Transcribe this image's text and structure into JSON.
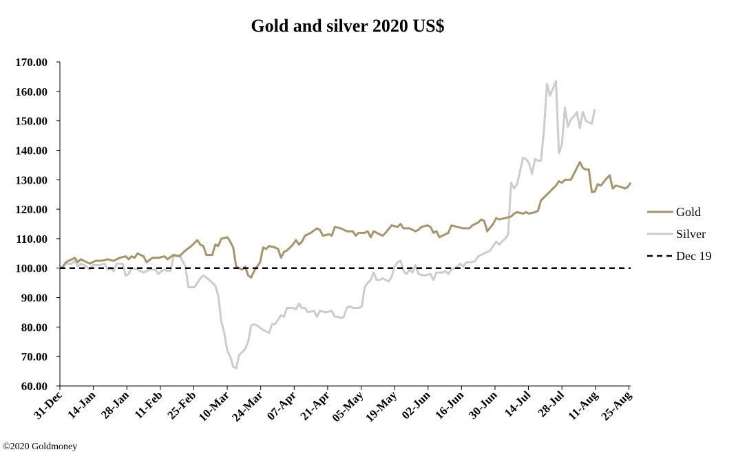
{
  "chart_data": {
    "type": "line",
    "title": "Gold and silver 2020  US$",
    "xlabel": "",
    "ylabel": "",
    "ylim": [
      60,
      170
    ],
    "yticks": [
      "60.00",
      "70.00",
      "80.00",
      "90.00",
      "100.00",
      "110.00",
      "120.00",
      "130.00",
      "140.00",
      "150.00",
      "160.00",
      "170.00"
    ],
    "xticks": [
      "31-Dec",
      "14-Jan",
      "28-Jan",
      "11-Feb",
      "25-Feb",
      "10-Mar",
      "24-Mar",
      "07-Apr",
      "21-Apr",
      "05-May",
      "19-May",
      "02-Jun",
      "16-Jun",
      "30-Jun",
      "14-Jul",
      "28-Jul",
      "11-Aug",
      "25-Aug"
    ],
    "legend_position": "right",
    "grid": false,
    "series": [
      {
        "name": "Gold",
        "color": "#a8946a",
        "points": [
          [
            0,
            100
          ],
          [
            1,
            100.5
          ],
          [
            2,
            102
          ],
          [
            3,
            102.5
          ],
          [
            5,
            103.5
          ],
          [
            6,
            102
          ],
          [
            7,
            103
          ],
          [
            9,
            102
          ],
          [
            10,
            101.5
          ],
          [
            12,
            102.5
          ],
          [
            14,
            102.5
          ],
          [
            16,
            103
          ],
          [
            18,
            102.5
          ],
          [
            20,
            103.5
          ],
          [
            22,
            104
          ],
          [
            23,
            103
          ],
          [
            24,
            104
          ],
          [
            25,
            103.5
          ],
          [
            26,
            105
          ],
          [
            28,
            104
          ],
          [
            29,
            102
          ],
          [
            31,
            103.5
          ],
          [
            33,
            103.5
          ],
          [
            35,
            104
          ],
          [
            36,
            103
          ],
          [
            38,
            104.5
          ],
          [
            40,
            104
          ],
          [
            42,
            106
          ],
          [
            44,
            107.5
          ],
          [
            46,
            109.5
          ],
          [
            47,
            108
          ],
          [
            48,
            107.5
          ],
          [
            49,
            104.5
          ],
          [
            51,
            104.5
          ],
          [
            52,
            108
          ],
          [
            53,
            107.5
          ],
          [
            54,
            110
          ],
          [
            56,
            110.5
          ],
          [
            57,
            109
          ],
          [
            58,
            107
          ],
          [
            59,
            100.5
          ],
          [
            60,
            100
          ],
          [
            61,
            99.5
          ],
          [
            62,
            100.5
          ],
          [
            63,
            97.5
          ],
          [
            64,
            96.8
          ],
          [
            65,
            99
          ],
          [
            67,
            102
          ],
          [
            68,
            107
          ],
          [
            69,
            106.5
          ],
          [
            70,
            107.5
          ],
          [
            72,
            107
          ],
          [
            73,
            106.5
          ],
          [
            74,
            103.5
          ],
          [
            75,
            105.5
          ],
          [
            76,
            106
          ],
          [
            77,
            107
          ],
          [
            78,
            108
          ],
          [
            79,
            109.5
          ],
          [
            80,
            108
          ],
          [
            81,
            109
          ],
          [
            82,
            111
          ],
          [
            84,
            112
          ],
          [
            86,
            113.5
          ],
          [
            87,
            113
          ],
          [
            88,
            111
          ],
          [
            90,
            111.5
          ],
          [
            91,
            111
          ],
          [
            92,
            114
          ],
          [
            94,
            113.5
          ],
          [
            96,
            112.5
          ],
          [
            98,
            112.5
          ],
          [
            99,
            111
          ],
          [
            100,
            112
          ],
          [
            102,
            112
          ],
          [
            103,
            112.5
          ],
          [
            104,
            110.5
          ],
          [
            105,
            112.5
          ],
          [
            107,
            111.5
          ],
          [
            108,
            111
          ],
          [
            109,
            112
          ],
          [
            111,
            114.5
          ],
          [
            113,
            114
          ],
          [
            114,
            115
          ],
          [
            115,
            113.5
          ],
          [
            117,
            113.5
          ],
          [
            119,
            112.5
          ],
          [
            120,
            113
          ],
          [
            121,
            114
          ],
          [
            123,
            114.5
          ],
          [
            124,
            114
          ],
          [
            125,
            112
          ],
          [
            126,
            112.5
          ],
          [
            127,
            110.5
          ],
          [
            128,
            111
          ],
          [
            130,
            112
          ],
          [
            131,
            114.5
          ],
          [
            133,
            114
          ],
          [
            135,
            113.5
          ],
          [
            137,
            113.5
          ],
          [
            138,
            114.5
          ],
          [
            140,
            115.5
          ],
          [
            141,
            116.5
          ],
          [
            142,
            116
          ],
          [
            143,
            112.5
          ],
          [
            145,
            115
          ],
          [
            146,
            117
          ],
          [
            147,
            116.5
          ],
          [
            149,
            117
          ],
          [
            151,
            117.5
          ],
          [
            152,
            118.5
          ],
          [
            153,
            119
          ],
          [
            155,
            118.5
          ],
          [
            156,
            119
          ],
          [
            157,
            118.5
          ],
          [
            159,
            119
          ],
          [
            160,
            119.5
          ],
          [
            161,
            123
          ],
          [
            162,
            124
          ],
          [
            164,
            126
          ],
          [
            165,
            127
          ],
          [
            166,
            128
          ],
          [
            167,
            129.5
          ],
          [
            168,
            129
          ],
          [
            169,
            130
          ],
          [
            171,
            130
          ],
          [
            172,
            132
          ],
          [
            173,
            134
          ],
          [
            174,
            136
          ],
          [
            175,
            134
          ],
          [
            176,
            133.5
          ],
          [
            177,
            133.5
          ],
          [
            178,
            125.8
          ],
          [
            179,
            126
          ],
          [
            180,
            128.5
          ],
          [
            181,
            128
          ],
          [
            183,
            130.5
          ],
          [
            184,
            131.5
          ],
          [
            185,
            127
          ],
          [
            186,
            128
          ],
          [
            188,
            127.5
          ],
          [
            189,
            127
          ],
          [
            190,
            127.5
          ],
          [
            191,
            129
          ]
        ]
      },
      {
        "name": "Silver",
        "color": "#cccccc",
        "points": [
          [
            0,
            100
          ],
          [
            1,
            100.5
          ],
          [
            2,
            101.5
          ],
          [
            4,
            101.5
          ],
          [
            5,
            102.5
          ],
          [
            6,
            100.5
          ],
          [
            7,
            101.5
          ],
          [
            9,
            100.5
          ],
          [
            10,
            99.5
          ],
          [
            11,
            101
          ],
          [
            13,
            101
          ],
          [
            15,
            101.5
          ],
          [
            16,
            99.5
          ],
          [
            17,
            100
          ],
          [
            18,
            99
          ],
          [
            19,
            101.5
          ],
          [
            21,
            101.5
          ],
          [
            22,
            97.5
          ],
          [
            23,
            98
          ],
          [
            24,
            100
          ],
          [
            26,
            99.5
          ],
          [
            27,
            99
          ],
          [
            28,
            98.5
          ],
          [
            30,
            99.5
          ],
          [
            32,
            99.5
          ],
          [
            33,
            98
          ],
          [
            34,
            99
          ],
          [
            35,
            99.5
          ],
          [
            36,
            99
          ],
          [
            37,
            99
          ],
          [
            38,
            104
          ],
          [
            39,
            104
          ],
          [
            40,
            104.5
          ],
          [
            42,
            100.5
          ],
          [
            43,
            93.5
          ],
          [
            45,
            93.5
          ],
          [
            46,
            95
          ],
          [
            47,
            96.5
          ],
          [
            48,
            97.5
          ],
          [
            50,
            96
          ],
          [
            52,
            94
          ],
          [
            53,
            90.5
          ],
          [
            54,
            82
          ],
          [
            55,
            78
          ],
          [
            56,
            72
          ],
          [
            57,
            70
          ],
          [
            58,
            66.5
          ],
          [
            59,
            66
          ],
          [
            60,
            70.5
          ],
          [
            62,
            72.5
          ],
          [
            63,
            75
          ],
          [
            64,
            80.5
          ],
          [
            65,
            81
          ],
          [
            66,
            80.5
          ],
          [
            68,
            79
          ],
          [
            69,
            78.5
          ],
          [
            70,
            78
          ],
          [
            71,
            81
          ],
          [
            72,
            81
          ],
          [
            73,
            82.5
          ],
          [
            74,
            84
          ],
          [
            75,
            83.5
          ],
          [
            76,
            86.5
          ],
          [
            78,
            86.5
          ],
          [
            79,
            86
          ],
          [
            80,
            88
          ],
          [
            81,
            86.5
          ],
          [
            82,
            86.5
          ],
          [
            83,
            85
          ],
          [
            85,
            85.5
          ],
          [
            86,
            83.5
          ],
          [
            87,
            85.5
          ],
          [
            89,
            85
          ],
          [
            91,
            85.5
          ],
          [
            92,
            83.5
          ],
          [
            93,
            83.5
          ],
          [
            94,
            83
          ],
          [
            95,
            83.5
          ],
          [
            96,
            86.5
          ],
          [
            97,
            87
          ],
          [
            98,
            86.5
          ],
          [
            100,
            86.5
          ],
          [
            101,
            87
          ],
          [
            102,
            93.5
          ],
          [
            103,
            95
          ],
          [
            104,
            96
          ],
          [
            105,
            98.5
          ],
          [
            106,
            96
          ],
          [
            107,
            96
          ],
          [
            108,
            96.5
          ],
          [
            110,
            95.5
          ],
          [
            111,
            97
          ],
          [
            112,
            100.5
          ],
          [
            113,
            102
          ],
          [
            114,
            102.5
          ],
          [
            115,
            99
          ],
          [
            116,
            98
          ],
          [
            117,
            99.5
          ],
          [
            118,
            98.5
          ],
          [
            119,
            101
          ],
          [
            120,
            98
          ],
          [
            122,
            97.5
          ],
          [
            124,
            98
          ],
          [
            125,
            96
          ],
          [
            126,
            98.5
          ],
          [
            128,
            98.5
          ],
          [
            129,
            99
          ],
          [
            130,
            98
          ],
          [
            131,
            99.5
          ],
          [
            133,
            100.5
          ],
          [
            134,
            101.5
          ],
          [
            135,
            100.5
          ],
          [
            136,
            102
          ],
          [
            138,
            102
          ],
          [
            139,
            102.5
          ],
          [
            140,
            104
          ],
          [
            141,
            104.5
          ],
          [
            142,
            105
          ],
          [
            144,
            106
          ],
          [
            146,
            109
          ],
          [
            147,
            108
          ],
          [
            149,
            110
          ],
          [
            150,
            111.5
          ],
          [
            151,
            129
          ],
          [
            152,
            127
          ],
          [
            153,
            128.5
          ],
          [
            154,
            133
          ],
          [
            155,
            137.5
          ],
          [
            156,
            137
          ],
          [
            157,
            135.5
          ],
          [
            158,
            132
          ],
          [
            159,
            137
          ],
          [
            160,
            136.5
          ],
          [
            161,
            136.5
          ],
          [
            162,
            147
          ],
          [
            163,
            162.5
          ],
          [
            164,
            158.5
          ],
          [
            166,
            163.5
          ],
          [
            167,
            139
          ],
          [
            168,
            142
          ],
          [
            169,
            154.5
          ],
          [
            170,
            148
          ],
          [
            171,
            150.5
          ],
          [
            172,
            151.5
          ],
          [
            173,
            153
          ],
          [
            174,
            147.5
          ],
          [
            175,
            153
          ],
          [
            176,
            150
          ],
          [
            178,
            149
          ],
          [
            179,
            154
          ]
        ]
      },
      {
        "name": "Dec 19",
        "color": "#000000",
        "dashed": true,
        "points": [
          [
            0,
            100
          ],
          [
            191,
            100
          ]
        ]
      }
    ],
    "x_domain": [
      0,
      191
    ],
    "xtick_positions": [
      0,
      11.2,
      22.4,
      33.6,
      44.8,
      56,
      67.2,
      78.4,
      89.6,
      100.8,
      112,
      123.2,
      134.4,
      145.6,
      156.8,
      168,
      179.2,
      190.4
    ]
  },
  "footer": {
    "copyright": "©2020 Goldmoney"
  }
}
